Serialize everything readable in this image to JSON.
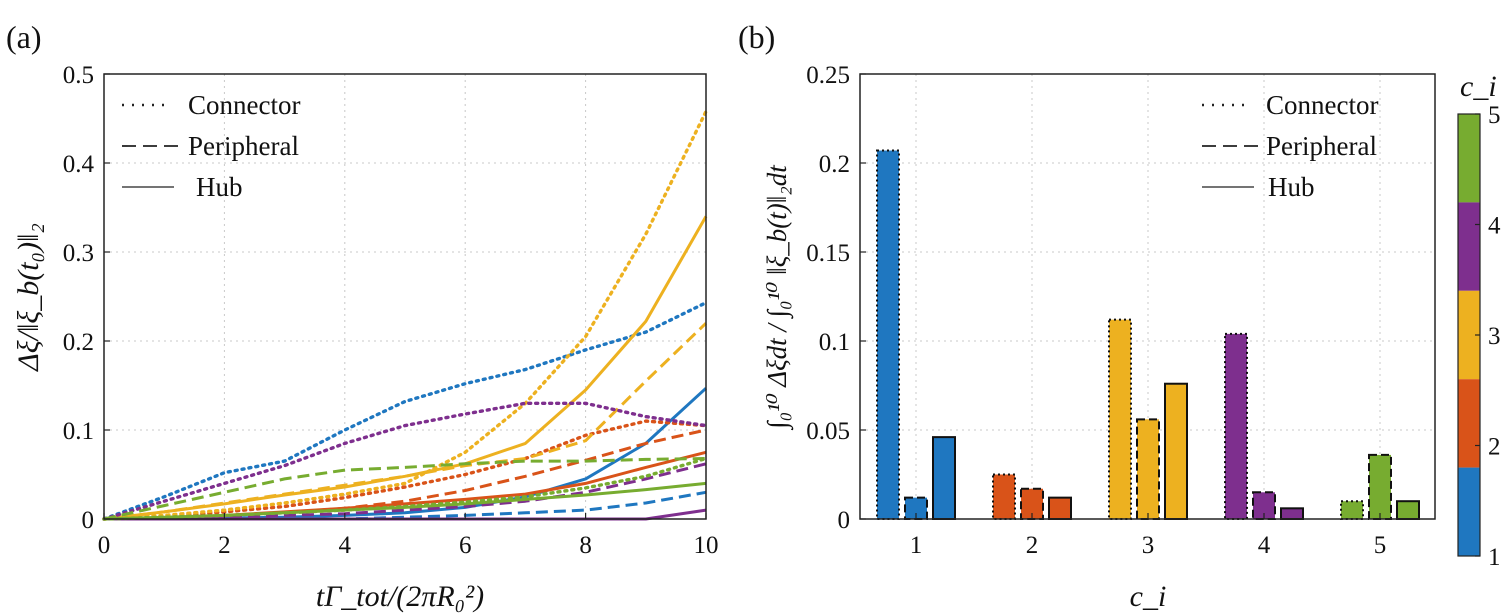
{
  "colors": {
    "c1": "#1f77c0",
    "c2": "#d95319",
    "c3": "#edb120",
    "c4": "#7e2f8e",
    "c5": "#77ac30"
  },
  "legend": {
    "connector": "Connector",
    "peripheral": "Peripheral",
    "hub": "Hub"
  },
  "colorbar": {
    "label": "c_i",
    "ticks": [
      "1",
      "2",
      "3",
      "4",
      "5"
    ]
  },
  "chart_data": [
    {
      "panel": "(a)",
      "type": "line",
      "xlabel": "tΓ_tot/(2πR₀²)",
      "ylabel": "Δξ/‖ξ_b(t₀)‖₂",
      "xlim": [
        0,
        10
      ],
      "ylim": [
        0,
        0.5
      ],
      "xticks": [
        "0",
        "2",
        "4",
        "6",
        "8",
        "10"
      ],
      "yticks": [
        "0",
        "0.1",
        "0.2",
        "0.3",
        "0.4",
        "0.5"
      ],
      "x": [
        0,
        1,
        2,
        3,
        4,
        5,
        6,
        7,
        8,
        9,
        10
      ],
      "series": [
        {
          "name": "c1 Connector",
          "color": "c1",
          "style": "dotted",
          "values": [
            0,
            0.025,
            0.052,
            0.065,
            0.1,
            0.132,
            0.152,
            0.168,
            0.19,
            0.21,
            0.243
          ]
        },
        {
          "name": "c1 Peripheral",
          "color": "c1",
          "style": "dashed",
          "values": [
            0,
            0,
            0,
            0,
            0,
            0.002,
            0.004,
            0.007,
            0.01,
            0.018,
            0.03
          ]
        },
        {
          "name": "c1 Hub",
          "color": "c1",
          "style": "solid",
          "values": [
            0,
            0,
            0.001,
            0.002,
            0.004,
            0.007,
            0.013,
            0.025,
            0.045,
            0.085,
            0.147
          ]
        },
        {
          "name": "c2 Connector",
          "color": "c2",
          "style": "dotted",
          "values": [
            0,
            0.002,
            0.008,
            0.014,
            0.024,
            0.036,
            0.05,
            0.068,
            0.094,
            0.11,
            0.105
          ]
        },
        {
          "name": "c2 Peripheral",
          "color": "c2",
          "style": "dashed",
          "values": [
            0,
            0.001,
            0.003,
            0.007,
            0.012,
            0.02,
            0.032,
            0.048,
            0.066,
            0.085,
            0.1
          ]
        },
        {
          "name": "c2 Hub",
          "color": "c2",
          "style": "solid",
          "values": [
            0,
            0.001,
            0.004,
            0.008,
            0.012,
            0.017,
            0.022,
            0.028,
            0.04,
            0.058,
            0.075
          ]
        },
        {
          "name": "c3 Connector",
          "color": "c3",
          "style": "dotted",
          "values": [
            0,
            0.004,
            0.01,
            0.018,
            0.028,
            0.04,
            0.075,
            0.13,
            0.205,
            0.32,
            0.458
          ]
        },
        {
          "name": "c3 Peripheral",
          "color": "c3",
          "style": "dashed",
          "values": [
            0,
            0.008,
            0.018,
            0.028,
            0.038,
            0.048,
            0.06,
            0.068,
            0.088,
            0.155,
            0.22
          ]
        },
        {
          "name": "c3 Hub",
          "color": "c3",
          "style": "solid",
          "values": [
            0,
            0.008,
            0.017,
            0.027,
            0.036,
            0.048,
            0.062,
            0.085,
            0.145,
            0.222,
            0.34
          ]
        },
        {
          "name": "c4 Connector",
          "color": "c4",
          "style": "dotted",
          "values": [
            0,
            0.02,
            0.04,
            0.06,
            0.085,
            0.105,
            0.118,
            0.13,
            0.13,
            0.115,
            0.105
          ]
        },
        {
          "name": "c4 Peripheral",
          "color": "c4",
          "style": "dashed",
          "values": [
            0,
            0.001,
            0.002,
            0.004,
            0.006,
            0.01,
            0.014,
            0.02,
            0.03,
            0.045,
            0.062
          ]
        },
        {
          "name": "c4 Hub",
          "color": "c4",
          "style": "solid",
          "values": [
            0,
            0,
            0,
            0,
            0,
            -0.001,
            -0.002,
            -0.003,
            -0.003,
            0,
            0.01
          ]
        },
        {
          "name": "c5 Connector",
          "color": "c5",
          "style": "dotted",
          "values": [
            0,
            0.002,
            0.004,
            0.007,
            0.01,
            0.014,
            0.019,
            0.025,
            0.035,
            0.048,
            0.068
          ]
        },
        {
          "name": "c5 Peripheral",
          "color": "c5",
          "style": "dashed",
          "values": [
            0,
            0.015,
            0.03,
            0.045,
            0.055,
            0.058,
            0.062,
            0.065,
            0.065,
            0.067,
            0.068
          ]
        },
        {
          "name": "c5 Hub",
          "color": "c5",
          "style": "solid",
          "values": [
            0,
            0.002,
            0.004,
            0.007,
            0.01,
            0.013,
            0.017,
            0.022,
            0.027,
            0.033,
            0.04
          ]
        }
      ]
    },
    {
      "panel": "(b)",
      "type": "bar",
      "xlabel": "c_i",
      "ylabel": "∫₀¹⁰ Δξdt / ∫₀¹⁰ ‖ξ_b(t)‖₂dt",
      "categories": [
        "1",
        "2",
        "3",
        "4",
        "5"
      ],
      "ylim": [
        0,
        0.25
      ],
      "yticks": [
        "0",
        "0.05",
        "0.1",
        "0.15",
        "0.2",
        "0.25"
      ],
      "series": [
        {
          "name": "Connector",
          "style": "dotted",
          "values": [
            0.207,
            0.025,
            0.112,
            0.104,
            0.01
          ]
        },
        {
          "name": "Peripheral",
          "style": "dashed",
          "values": [
            0.012,
            0.017,
            0.056,
            0.015,
            0.036
          ]
        },
        {
          "name": "Hub",
          "style": "solid",
          "values": [
            0.046,
            0.012,
            0.076,
            0.006,
            0.01
          ]
        }
      ]
    }
  ]
}
